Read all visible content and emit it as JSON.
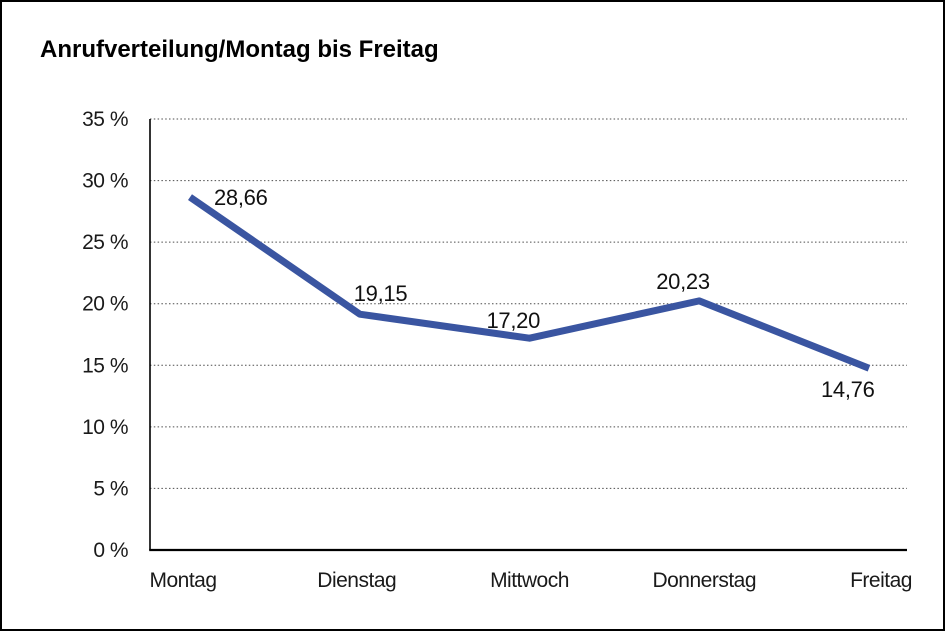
{
  "chart_data": {
    "type": "line",
    "title": "Anrufverteilung/Montag bis Freitag",
    "categories": [
      "Montag",
      "Dienstag",
      "Mittwoch",
      "Donnerstag",
      "Freitag"
    ],
    "values": [
      28.66,
      19.15,
      17.2,
      20.23,
      14.76
    ],
    "value_labels": [
      "28,66",
      "19,15",
      "17,20",
      "20,23",
      "14,76"
    ],
    "series_name": "Anrufverteilung",
    "xlabel": "",
    "ylabel": "",
    "ylim": [
      0,
      35
    ],
    "y_ticks": [
      0,
      5,
      10,
      15,
      20,
      25,
      30,
      35
    ],
    "y_tick_labels": [
      "0 %",
      "5 %",
      "10 %",
      "15 %",
      "20 %",
      "25 %",
      "30 %",
      "35 %"
    ],
    "grid": "horizontal-dotted",
    "legend_position": "none",
    "line_color": "#3A55A1",
    "grid_color": "#4d4d4d",
    "axis_color": "#000000",
    "text_color": "#1a1a1a",
    "background_color": "#ffffff"
  }
}
